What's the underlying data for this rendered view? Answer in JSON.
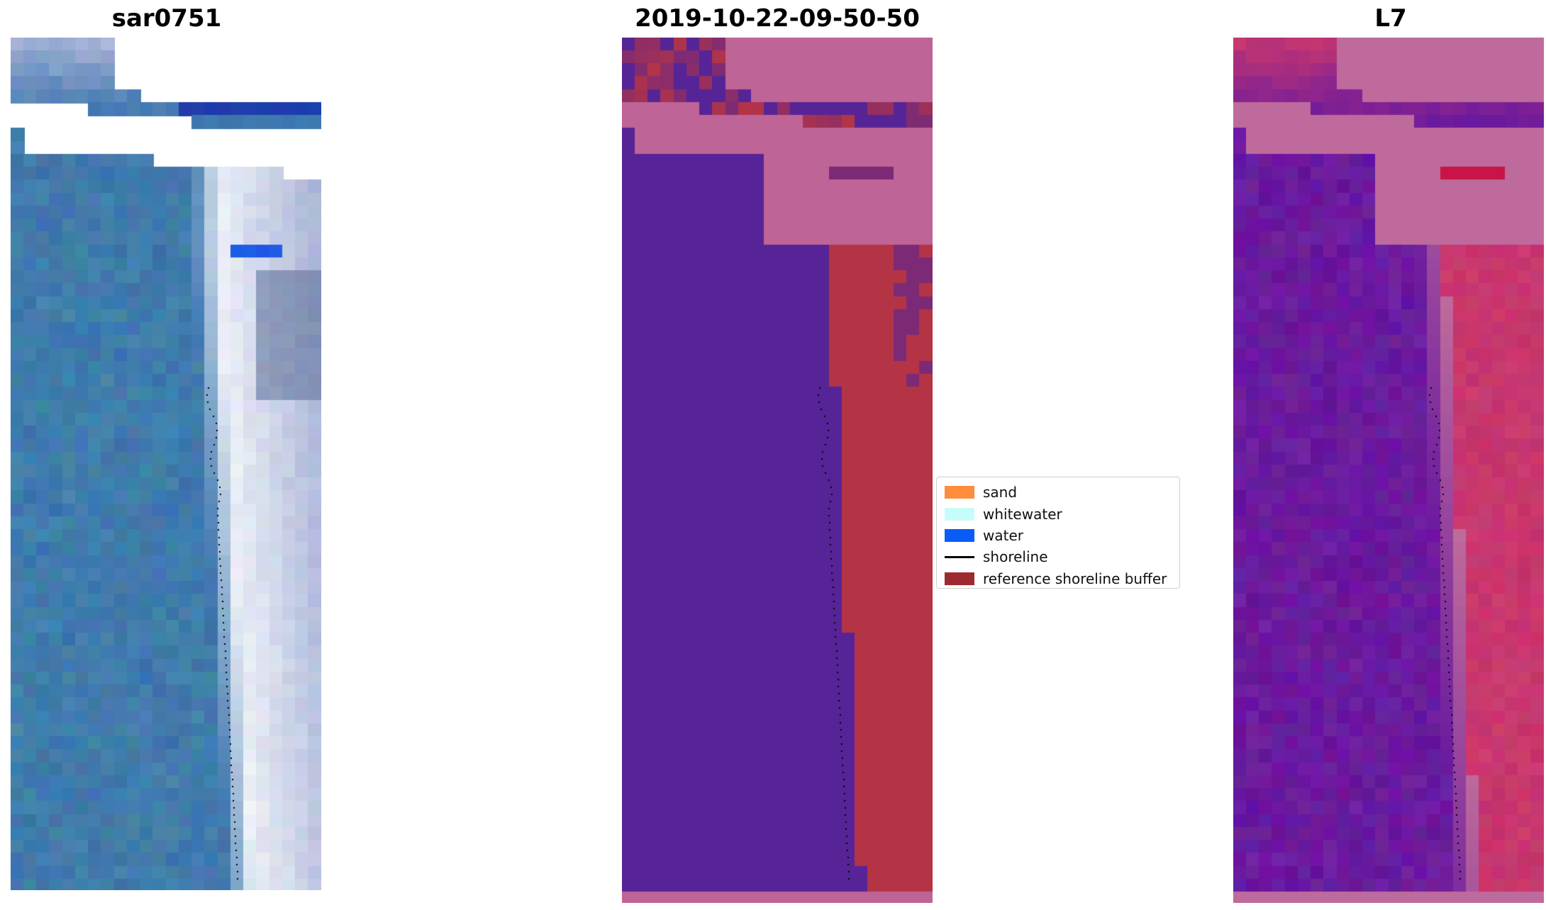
{
  "titles": {
    "left": "sar0751",
    "center": "2019-10-22-09-50-50",
    "right": "L7"
  },
  "legend": {
    "items": [
      {
        "label": "sand",
        "kind": "patch",
        "color": "#ff8c3c"
      },
      {
        "label": "whitewater",
        "kind": "patch",
        "color": "#c8fcfc"
      },
      {
        "label": "water",
        "kind": "patch",
        "color": "#0a5cf7"
      },
      {
        "label": "shoreline",
        "kind": "line",
        "color": "#000000"
      },
      {
        "label": "reference shoreline buffer",
        "kind": "patch",
        "color": "#9b2b30"
      }
    ]
  },
  "colors": {
    "rgb_water": "#3f78b0",
    "rgb_whitewater": "#eef2f8",
    "rgb_haze": "#aab4d8",
    "class_water": "#562496",
    "class_buffer": "#b43446",
    "class_nodata": "#be6496",
    "index_water": "#6a1a9e",
    "index_land": "#c8376e",
    "index_nodata": "#be6a9c"
  }
}
